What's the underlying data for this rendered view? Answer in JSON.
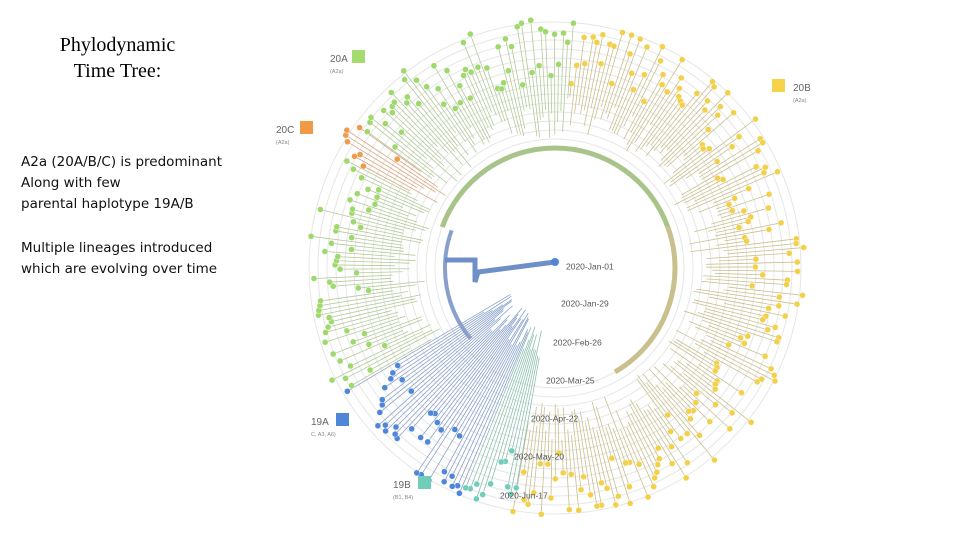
{
  "slide": {
    "title_lines": [
      "Phylodynamic",
      "Time Tree:"
    ],
    "bullets": [
      "A2a (20A/B/C) is predominant",
      "Along with few",
      "parental haplotype 19A/B",
      "Multiple lineages introduced",
      "which are evolving over time"
    ]
  },
  "tree": {
    "clades": [
      {
        "name": "20A",
        "note": "(A2a)"
      },
      {
        "name": "20B",
        "note": "(A2a)"
      },
      {
        "name": "20C",
        "note": "(A2a)"
      },
      {
        "name": "19A",
        "note": "C, A3, A6)"
      },
      {
        "name": "19B",
        "note": "(B1, B4)"
      }
    ],
    "dates": [
      "2020-Jan-01",
      "2020-Jan-29",
      "2020-Feb-26",
      "2020-Mar-25",
      "2020-Apr-22",
      "2020-May-20",
      "2020-Jun-17"
    ]
  }
}
